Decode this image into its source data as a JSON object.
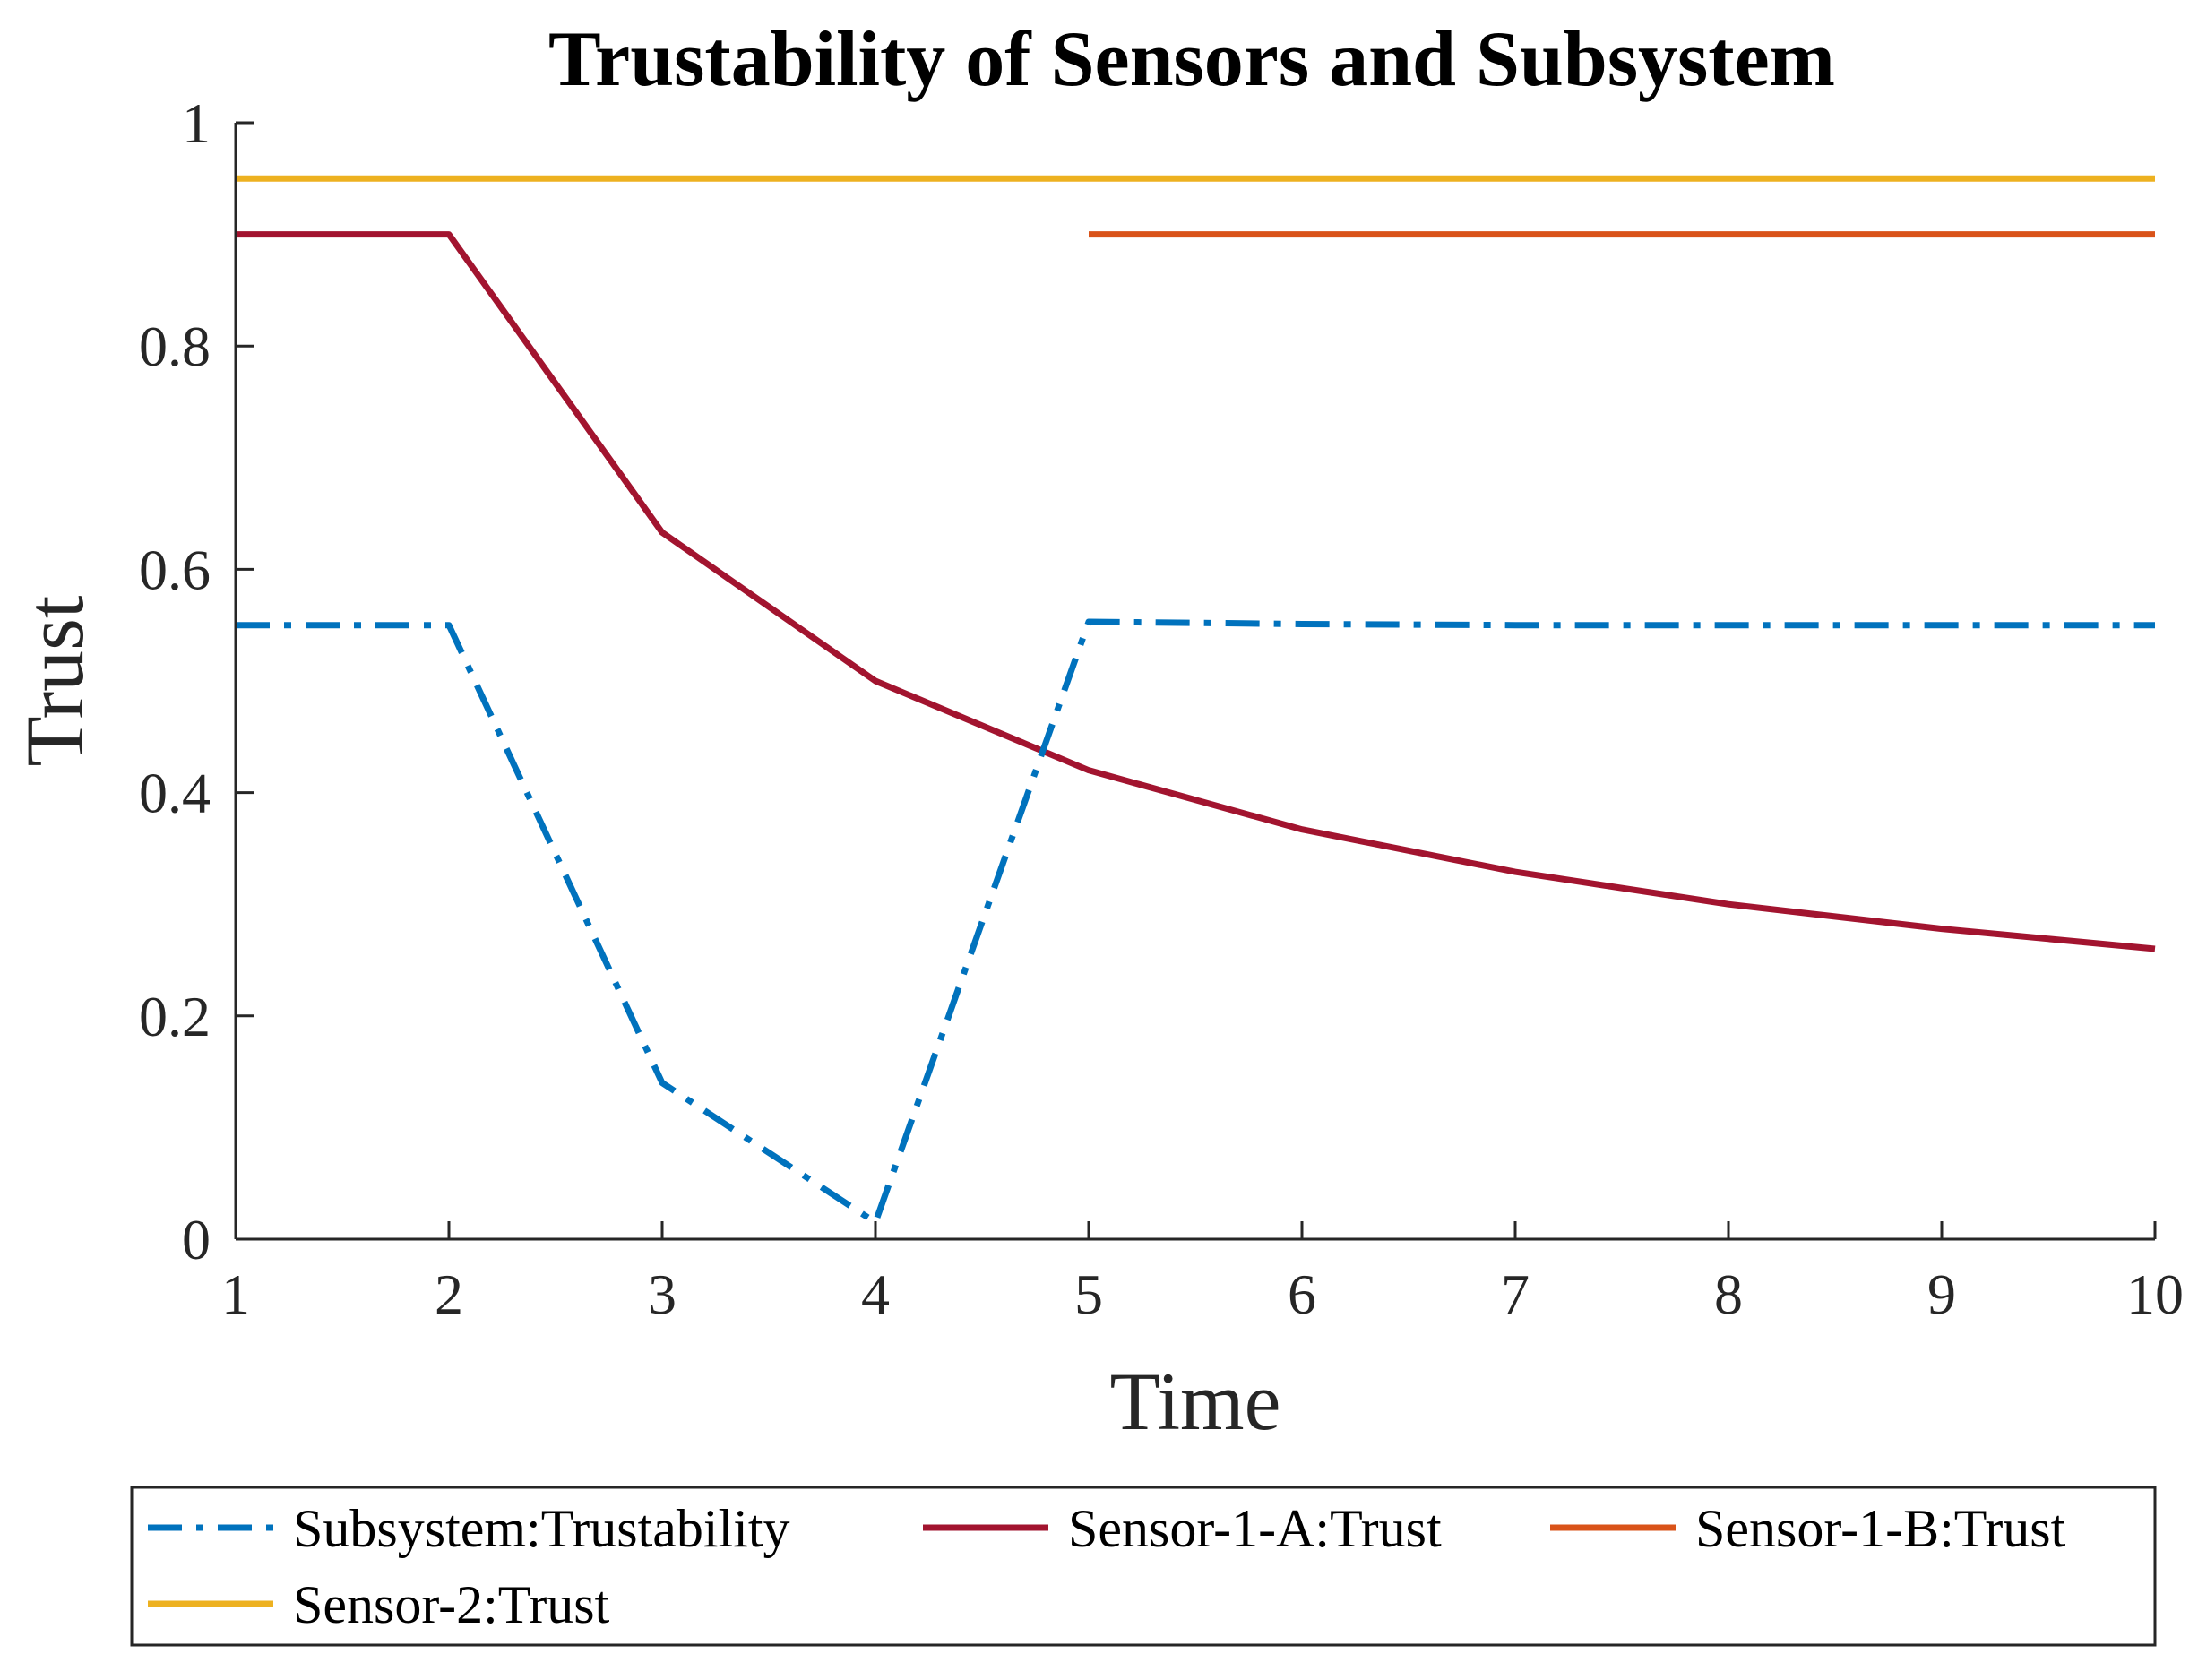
{
  "chart_data": {
    "type": "line",
    "title": "Trustability of Sensors and Subsystem",
    "xlabel": "Time",
    "ylabel": "Trust",
    "xlim": [
      1,
      10
    ],
    "ylim": [
      0,
      1
    ],
    "xticks": [
      "1",
      "2",
      "3",
      "4",
      "5",
      "6",
      "7",
      "8",
      "9",
      "10"
    ],
    "yticks": [
      "0",
      "0.2",
      "0.4",
      "0.6",
      "0.8",
      "1"
    ],
    "grid": false,
    "legend_position": "below plot",
    "series": [
      {
        "name": "Subsystem:Trustability",
        "color": "#0072BD",
        "style": "dash-dot",
        "x": [
          1,
          2,
          3,
          4,
          5,
          6,
          7,
          8,
          9,
          10
        ],
        "y": [
          0.55,
          0.55,
          0.14,
          0.015,
          0.553,
          0.551,
          0.55,
          0.55,
          0.55,
          0.55
        ]
      },
      {
        "name": "Sensor-1-A:Trust",
        "color": "#A2142F",
        "style": "solid",
        "x": [
          1,
          2,
          3,
          4,
          5,
          6,
          7,
          8,
          9,
          10
        ],
        "y": [
          0.9,
          0.9,
          0.633,
          0.5,
          0.42,
          0.367,
          0.329,
          0.3,
          0.278,
          0.26
        ]
      },
      {
        "name": "Sensor-1-B:Trust",
        "color": "#D95319",
        "style": "solid",
        "x": [
          5,
          6,
          7,
          8,
          9,
          10
        ],
        "y": [
          0.9,
          0.9,
          0.9,
          0.9,
          0.9,
          0.9
        ]
      },
      {
        "name": "Sensor-2:Trust",
        "color": "#EDB120",
        "style": "solid",
        "x": [
          1,
          2,
          3,
          4,
          5,
          6,
          7,
          8,
          9,
          10
        ],
        "y": [
          0.95,
          0.95,
          0.95,
          0.95,
          0.95,
          0.95,
          0.95,
          0.95,
          0.95,
          0.95
        ]
      }
    ]
  }
}
